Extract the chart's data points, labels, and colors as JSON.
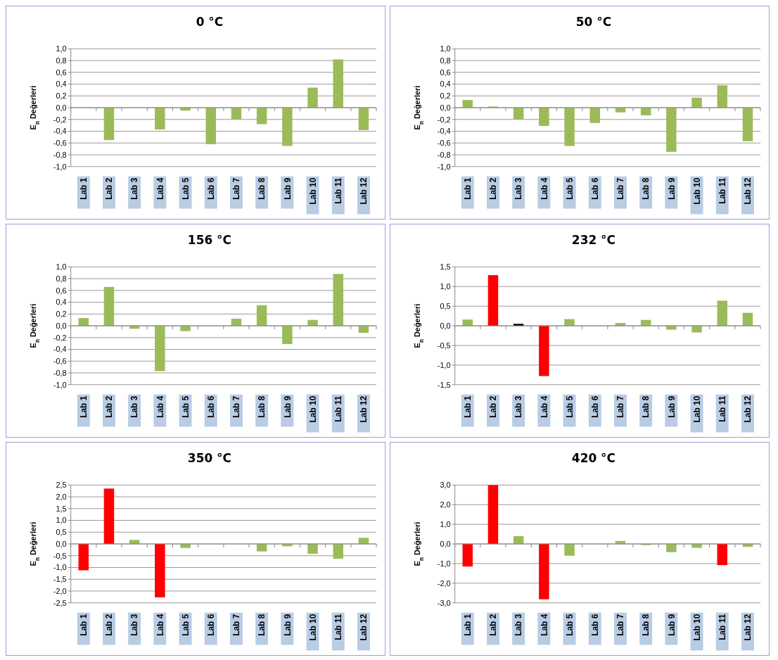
{
  "chart_data": [
    {
      "type": "bar",
      "title": "0 °C",
      "ylabel": "E$_{n}$ Değerleri",
      "categories": [
        "Lab 1",
        "Lab 2",
        "Lab 3",
        "Lab 4",
        "Lab 5",
        "Lab 6",
        "Lab 7",
        "Lab 8",
        "Lab 9",
        "Lab 10",
        "Lab 11",
        "Lab 12"
      ],
      "values": [
        0,
        -0.55,
        0,
        -0.37,
        -0.05,
        -0.62,
        -0.2,
        -0.28,
        -0.65,
        0.34,
        0.82,
        -0.38
      ],
      "colors": [
        "#9bbb59",
        "#9bbb59",
        "#9bbb59",
        "#9bbb59",
        "#9bbb59",
        "#9bbb59",
        "#9bbb59",
        "#9bbb59",
        "#9bbb59",
        "#9bbb59",
        "#9bbb59",
        "#9bbb59"
      ],
      "ylim": [
        -1,
        1
      ],
      "yticks": [
        {
          "value": -1,
          "label": "-1,0"
        },
        {
          "value": -0.8,
          "label": "-0,8"
        },
        {
          "value": -0.6,
          "label": "-0,6"
        },
        {
          "value": -0.4,
          "label": "-0,4"
        },
        {
          "value": -0.2,
          "label": "-0,2"
        },
        {
          "value": 0,
          "label": "0,0"
        },
        {
          "value": 0.2,
          "label": "0,2"
        },
        {
          "value": 0.4,
          "label": "0,4"
        },
        {
          "value": 0.6,
          "label": "0,6"
        },
        {
          "value": 0.8,
          "label": "0,8"
        },
        {
          "value": 1,
          "label": "1,0"
        }
      ],
      "grid": "y"
    },
    {
      "type": "bar",
      "title": "50 °C",
      "ylabel": "E$_{n}$ Değerleri",
      "categories": [
        "Lab 1",
        "Lab 2",
        "Lab 3",
        "Lab 4",
        "Lab 5",
        "Lab 6",
        "Lab 7",
        "Lab 8",
        "Lab 9",
        "Lab 10",
        "Lab 11",
        "Lab 12"
      ],
      "values": [
        0.13,
        0.02,
        -0.2,
        -0.31,
        -0.65,
        -0.26,
        -0.08,
        -0.13,
        -0.75,
        0.17,
        0.38,
        -0.57
      ],
      "colors": [
        "#9bbb59",
        "#9bbb59",
        "#9bbb59",
        "#9bbb59",
        "#9bbb59",
        "#9bbb59",
        "#9bbb59",
        "#9bbb59",
        "#9bbb59",
        "#9bbb59",
        "#9bbb59",
        "#9bbb59"
      ],
      "ylim": [
        -1,
        1
      ],
      "yticks": [
        {
          "value": -1,
          "label": "-1,0"
        },
        {
          "value": -0.8,
          "label": "-0,8"
        },
        {
          "value": -0.6,
          "label": "-0,6"
        },
        {
          "value": -0.4,
          "label": "-0,4"
        },
        {
          "value": -0.2,
          "label": "-0,2"
        },
        {
          "value": 0,
          "label": "0,0"
        },
        {
          "value": 0.2,
          "label": "0,2"
        },
        {
          "value": 0.4,
          "label": "0,4"
        },
        {
          "value": 0.6,
          "label": "0,6"
        },
        {
          "value": 0.8,
          "label": "0,8"
        },
        {
          "value": 1,
          "label": "1,0"
        }
      ],
      "grid": "y"
    },
    {
      "type": "bar",
      "title": "156 °C",
      "ylabel": "E$_{n}$ Değerleri",
      "categories": [
        "Lab 1",
        "Lab 2",
        "Lab 3",
        "Lab 4",
        "Lab 5",
        "Lab 6",
        "Lab 7",
        "Lab 8",
        "Lab 9",
        "Lab 10",
        "Lab 11",
        "Lab 12"
      ],
      "values": [
        0.13,
        0.66,
        -0.05,
        -0.77,
        -0.09,
        0,
        0.12,
        0.35,
        -0.31,
        0.1,
        0.88,
        -0.12
      ],
      "colors": [
        "#9bbb59",
        "#9bbb59",
        "#9bbb59",
        "#9bbb59",
        "#9bbb59",
        "#9bbb59",
        "#9bbb59",
        "#9bbb59",
        "#9bbb59",
        "#9bbb59",
        "#9bbb59",
        "#9bbb59"
      ],
      "ylim": [
        -1,
        1
      ],
      "yticks": [
        {
          "value": -1,
          "label": "-1,0"
        },
        {
          "value": -0.8,
          "label": "-0,8"
        },
        {
          "value": -0.6,
          "label": "-0,6"
        },
        {
          "value": -0.4,
          "label": "-0,4"
        },
        {
          "value": -0.2,
          "label": "-0,2"
        },
        {
          "value": 0,
          "label": "0,0"
        },
        {
          "value": 0.2,
          "label": "0,2"
        },
        {
          "value": 0.4,
          "label": "0,4"
        },
        {
          "value": 0.6,
          "label": "0,6"
        },
        {
          "value": 0.8,
          "label": "0,8"
        },
        {
          "value": 1,
          "label": "1,0"
        }
      ],
      "grid": "y"
    },
    {
      "type": "bar",
      "title": "232 °C",
      "ylabel": "E$_{n}$ Değerleri",
      "categories": [
        "Lab 1",
        "Lab 2",
        "Lab 3",
        "Lab 4",
        "Lab 5",
        "Lab 6",
        "Lab 7",
        "Lab 8",
        "Lab 9",
        "Lab 10",
        "Lab 11",
        "Lab 12"
      ],
      "values": [
        0.16,
        1.29,
        0.05,
        -1.28,
        0.17,
        0,
        0.07,
        0.15,
        -0.1,
        -0.17,
        0.64,
        0.33
      ],
      "colors": [
        "#9bbb59",
        "#ff0000",
        "#000000",
        "#ff0000",
        "#9bbb59",
        "#9bbb59",
        "#9bbb59",
        "#9bbb59",
        "#9bbb59",
        "#9bbb59",
        "#9bbb59",
        "#9bbb59"
      ],
      "ylim": [
        -1.5,
        1.5
      ],
      "yticks": [
        {
          "value": -1.5,
          "label": "-1,5"
        },
        {
          "value": -1,
          "label": "-1,0"
        },
        {
          "value": -0.5,
          "label": "-0,5"
        },
        {
          "value": 0,
          "label": "0,0"
        },
        {
          "value": 0.5,
          "label": "0,5"
        },
        {
          "value": 1,
          "label": "1,0"
        },
        {
          "value": 1.5,
          "label": "1,5"
        }
      ],
      "grid": "y"
    },
    {
      "type": "bar",
      "title": "350 °C",
      "ylabel": "E$_{n}$ Değerleri",
      "categories": [
        "Lab 1",
        "Lab 2",
        "Lab 3",
        "Lab 4",
        "Lab 5",
        "Lab 6",
        "Lab 7",
        "Lab 8",
        "Lab 9",
        "Lab 10",
        "Lab 11",
        "Lab 12"
      ],
      "values": [
        -1.12,
        2.35,
        0.17,
        -2.27,
        -0.17,
        0,
        0,
        -0.32,
        -0.1,
        -0.42,
        -0.63,
        0.26
      ],
      "colors": [
        "#ff0000",
        "#ff0000",
        "#9bbb59",
        "#ff0000",
        "#9bbb59",
        "#9bbb59",
        "#9bbb59",
        "#9bbb59",
        "#9bbb59",
        "#9bbb59",
        "#9bbb59",
        "#9bbb59"
      ],
      "ylim": [
        -2.5,
        2.5
      ],
      "yticks": [
        {
          "value": -2.5,
          "label": "-2,5"
        },
        {
          "value": -2,
          "label": "-2,0"
        },
        {
          "value": -1.5,
          "label": "-1,5"
        },
        {
          "value": -1,
          "label": "-1,0"
        },
        {
          "value": -0.5,
          "label": "-0,5"
        },
        {
          "value": 0,
          "label": "0,0"
        },
        {
          "value": 0.5,
          "label": "0,5"
        },
        {
          "value": 1,
          "label": "1,0"
        },
        {
          "value": 1.5,
          "label": "1,5"
        },
        {
          "value": 2,
          "label": "2,0"
        },
        {
          "value": 2.5,
          "label": "2,5"
        }
      ],
      "grid": "y"
    },
    {
      "type": "bar",
      "title": "420 °C",
      "ylabel": "E$_{n}$ Değerleri",
      "categories": [
        "Lab 1",
        "Lab 2",
        "Lab 3",
        "Lab 4",
        "Lab 5",
        "Lab 6",
        "Lab 7",
        "Lab 8",
        "Lab 9",
        "Lab 10",
        "Lab 11",
        "Lab 12"
      ],
      "values": [
        -1.15,
        3.0,
        0.4,
        -2.82,
        -0.6,
        0,
        0.15,
        -0.06,
        -0.42,
        -0.2,
        -1.08,
        -0.15
      ],
      "colors": [
        "#ff0000",
        "#ff0000",
        "#9bbb59",
        "#ff0000",
        "#9bbb59",
        "#9bbb59",
        "#9bbb59",
        "#9bbb59",
        "#9bbb59",
        "#9bbb59",
        "#ff0000",
        "#9bbb59"
      ],
      "ylim": [
        -3,
        3
      ],
      "yticks": [
        {
          "value": -3,
          "label": "-3,0"
        },
        {
          "value": -2,
          "label": "-2,0"
        },
        {
          "value": -1,
          "label": "-1,0"
        },
        {
          "value": 0,
          "label": "0,0"
        },
        {
          "value": 1,
          "label": "1,0"
        },
        {
          "value": 2,
          "label": "2,0"
        },
        {
          "value": 3,
          "label": "3,0"
        }
      ],
      "grid": "y"
    }
  ]
}
